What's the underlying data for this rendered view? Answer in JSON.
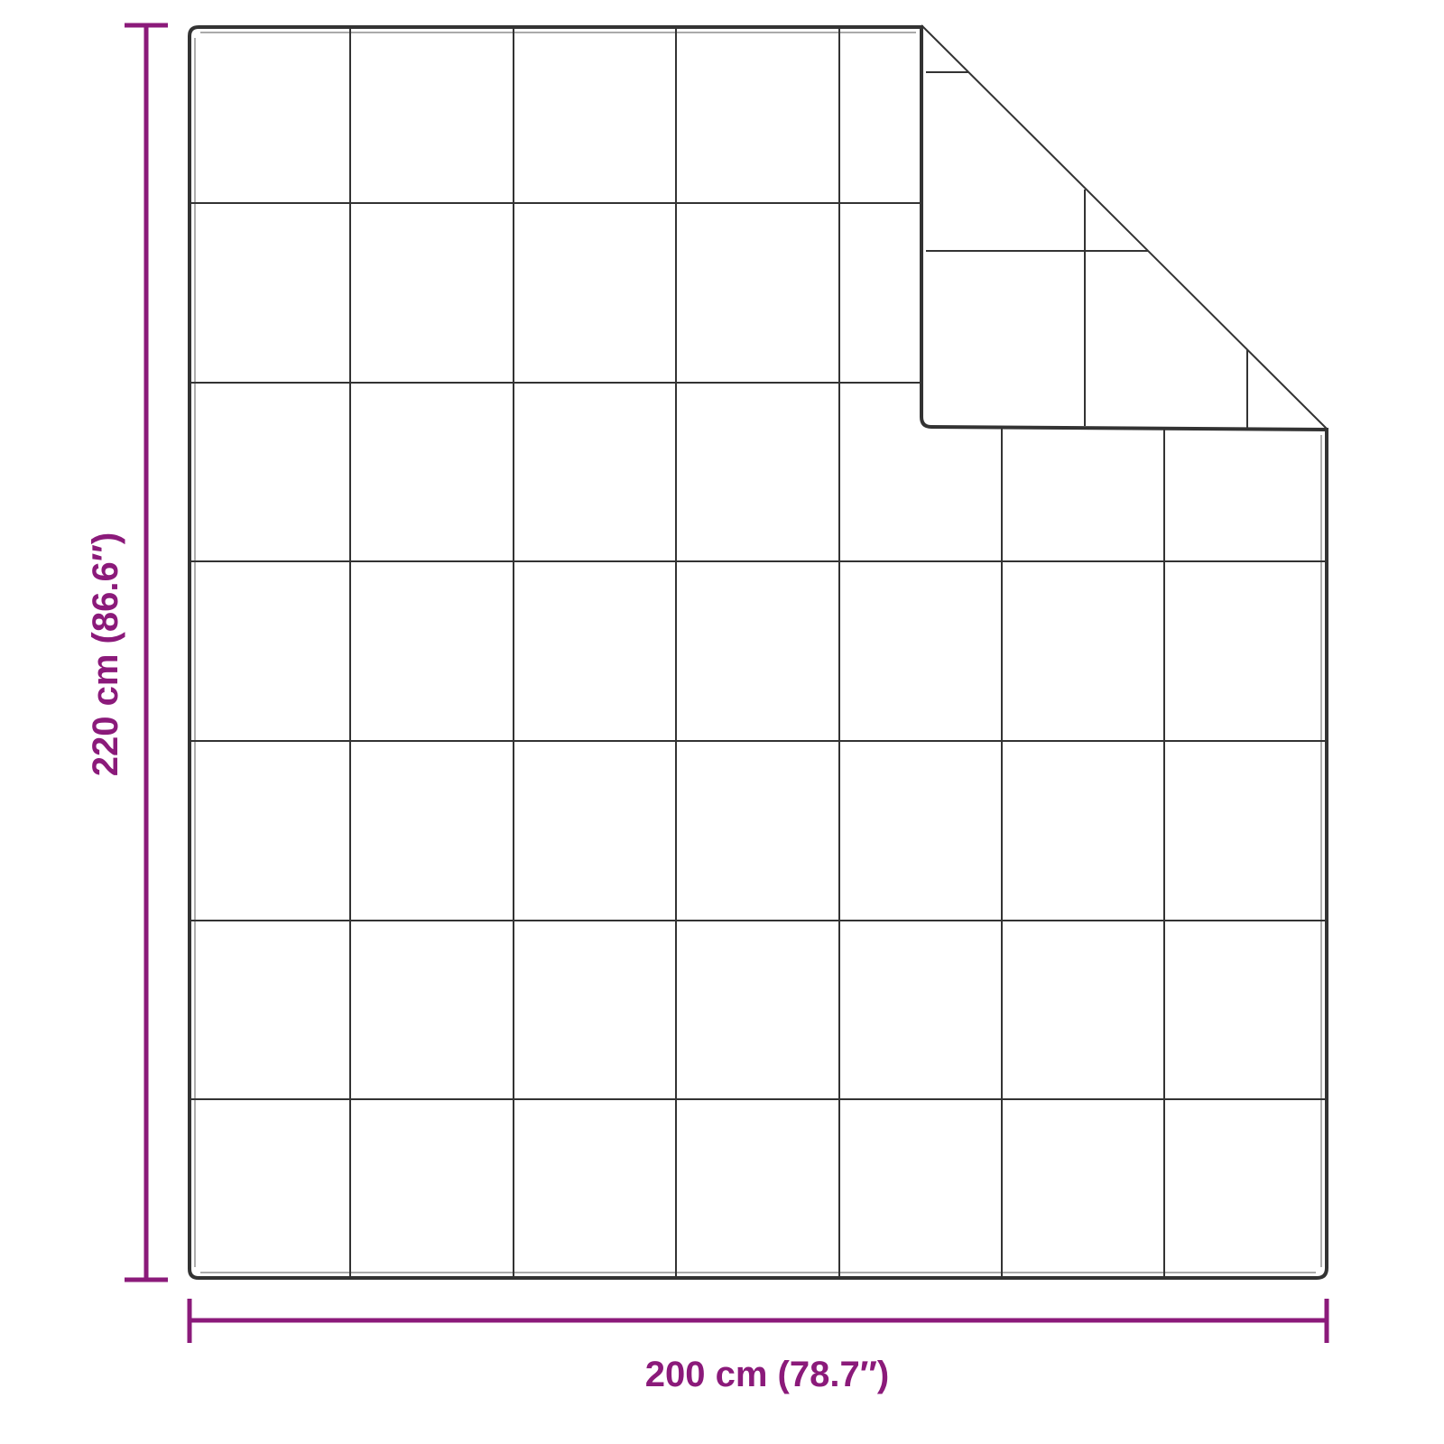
{
  "dimensions": {
    "height_label": "220 cm (86.6″)",
    "width_label": "200 cm (78.7″)"
  },
  "colors": {
    "dimension": "#8b1a7a",
    "outline": "#333333"
  }
}
